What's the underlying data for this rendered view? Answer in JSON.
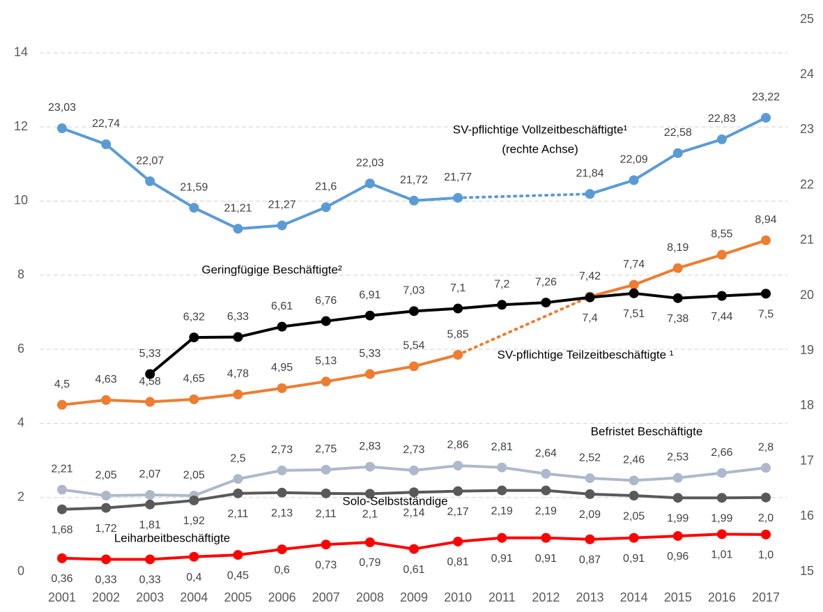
{
  "chart_data": {
    "type": "line",
    "categories": [
      "2001",
      "2002",
      "2003",
      "2004",
      "2005",
      "2006",
      "2007",
      "2008",
      "2009",
      "2010",
      "2011",
      "2012",
      "2013",
      "2014",
      "2015",
      "2016",
      "2017"
    ],
    "ylim": [
      0,
      14.9
    ],
    "yticks": [
      0,
      2,
      4,
      6,
      8,
      10,
      12,
      14
    ],
    "y2lim": [
      15,
      25
    ],
    "y2ticks": [
      15,
      16,
      17,
      18,
      19,
      20,
      21,
      22,
      23,
      24,
      25
    ],
    "grid": true,
    "annotations": [
      "(rechte Achse)"
    ],
    "series": [
      {
        "name": "SV-pflichtige Vollzeitbeschäftigte¹",
        "color": "#5b9bd5",
        "axis": "y2",
        "values": [
          23.03,
          22.74,
          22.07,
          21.59,
          21.21,
          21.27,
          21.6,
          22.03,
          21.72,
          21.77,
          null,
          null,
          21.84,
          22.09,
          22.58,
          22.83,
          23.22
        ],
        "value_labels": [
          "23,03",
          "22,74",
          "22,07",
          "21,59",
          "21,21",
          "21,27",
          "21,6",
          "22,03",
          "21,72",
          "21,77",
          null,
          null,
          "21,84",
          "22,09",
          "22,58",
          "22,83",
          "23,22"
        ]
      },
      {
        "name": "SV-pflichtige Teilzeitbeschäftigte ¹",
        "color": "#ed7d31",
        "values": [
          4.5,
          4.63,
          4.58,
          4.65,
          4.78,
          4.95,
          5.13,
          5.33,
          5.54,
          5.85,
          null,
          null,
          7.42,
          7.74,
          8.19,
          8.55,
          8.94
        ],
        "value_labels": [
          "4,5",
          "4,63",
          "4,58",
          "4,65",
          "4,78",
          "4,95",
          "5,13",
          "5,33",
          "5,54",
          "5,85",
          null,
          null,
          "7,42",
          "7,74",
          "8,19",
          "8,55",
          "8,94"
        ]
      },
      {
        "name": "Geringfügige Beschäftigte²",
        "color": "#000000",
        "values": [
          null,
          null,
          5.33,
          6.32,
          6.33,
          6.61,
          6.76,
          6.91,
          7.03,
          7.1,
          7.2,
          7.26,
          7.4,
          7.51,
          7.38,
          7.44,
          7.5
        ],
        "value_labels": [
          null,
          null,
          "5,33",
          "6,32",
          "6,33",
          "6,61",
          "6,76",
          "6,91",
          "7,03",
          "7,1",
          "7,2",
          "7,26",
          "7,4",
          "7,51",
          "7,38",
          "7,44",
          "7,5"
        ]
      },
      {
        "name": "Befristet Beschäftigte",
        "color": "#adb9ca",
        "values": [
          2.21,
          2.05,
          2.07,
          2.05,
          2.5,
          2.73,
          2.75,
          2.83,
          2.73,
          2.86,
          2.81,
          2.64,
          2.52,
          2.46,
          2.53,
          2.66,
          2.8
        ],
        "value_labels": [
          "2,21",
          "2,05",
          "2,07",
          "2,05",
          "2,5",
          "2,73",
          "2,75",
          "2,83",
          "2,73",
          "2,86",
          "2,81",
          "2,64",
          "2,52",
          "2,46",
          "2,53",
          "2,66",
          "2,8"
        ]
      },
      {
        "name": "Solo-Selbstständige",
        "color": "#595959",
        "values": [
          1.68,
          1.72,
          1.81,
          1.92,
          2.11,
          2.13,
          2.11,
          2.1,
          2.14,
          2.17,
          2.19,
          2.19,
          2.09,
          2.05,
          1.99,
          1.99,
          2.0
        ],
        "value_labels": [
          "1,68",
          "1,72",
          "1,81",
          "1,92",
          "2,11",
          "2,13",
          "2,11",
          "2,1",
          "2,14",
          "2,17",
          "2,19",
          "2,19",
          "2,09",
          "2,05",
          "1,99",
          "1,99",
          "2,0"
        ]
      },
      {
        "name": "Leiharbeitbeschäftigte",
        "color": "#ff0000",
        "values": [
          0.36,
          0.33,
          0.33,
          0.4,
          0.45,
          0.6,
          0.73,
          0.79,
          0.61,
          0.81,
          0.91,
          0.91,
          0.87,
          0.91,
          0.96,
          1.01,
          1.0
        ],
        "value_labels": [
          "0,36",
          "0,33",
          "0,33",
          "0,4",
          "0,45",
          "0,6",
          "0,73",
          "0,79",
          "0,61",
          "0,81",
          "0,91",
          "0,91",
          "0,87",
          "0,91",
          "0,96",
          "1,01",
          "1,0"
        ]
      }
    ]
  }
}
